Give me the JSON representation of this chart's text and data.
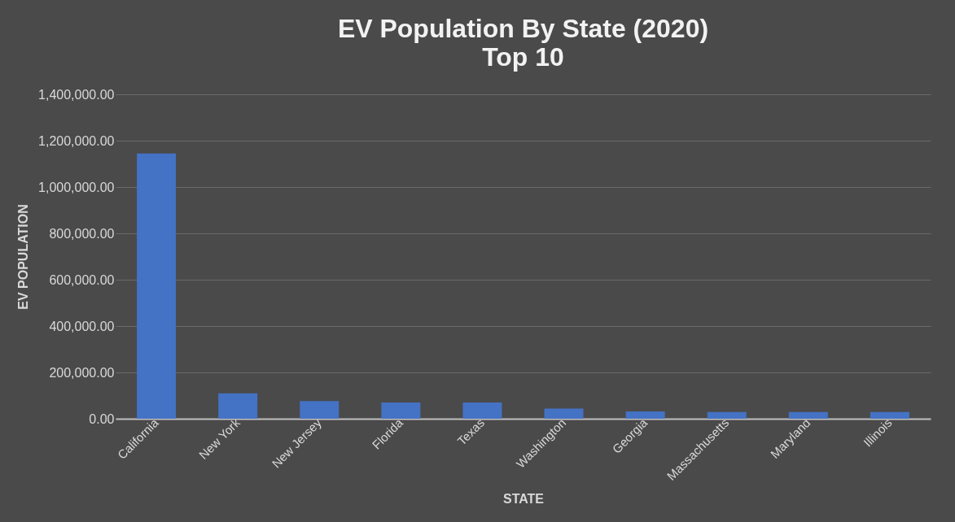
{
  "chart_data": {
    "type": "bar",
    "title": "EV Population By State (2020)",
    "subtitle": "Top 10",
    "xlabel": "STATE",
    "ylabel": "EV POPULATION",
    "categories": [
      "California",
      "New York",
      "New Jersey",
      "Florida",
      "Texas",
      "Washington",
      "Georgia",
      "Massachusetts",
      "Maryland",
      "Illinois"
    ],
    "values": [
      1145000,
      110000,
      76000,
      70000,
      70000,
      44000,
      32000,
      29000,
      29000,
      29000
    ],
    "color": "#4472c4",
    "ylim": [
      0,
      1400000
    ],
    "yticks": [
      {
        "value": 0,
        "label": "0.00"
      },
      {
        "value": 200000,
        "label": "200,000.00"
      },
      {
        "value": 400000,
        "label": "400,000.00"
      },
      {
        "value": 600000,
        "label": "600,000.00"
      },
      {
        "value": 800000,
        "label": "800,000.00"
      },
      {
        "value": 1000000,
        "label": "1,000,000.00"
      },
      {
        "value": 1200000,
        "label": "1,200,000.00"
      },
      {
        "value": 1400000,
        "label": "1,400,000.00"
      }
    ],
    "grid": "y"
  }
}
